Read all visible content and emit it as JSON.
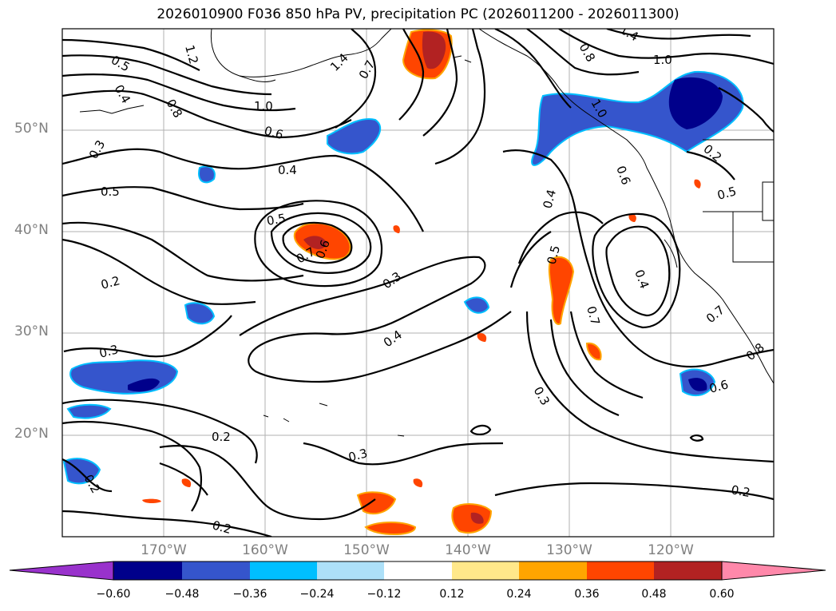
{
  "title": "2026010900 F036 850 hPa PV, precipitation PC (2026011200 - 2026011300)",
  "map": {
    "lat_labels": [
      "50°N",
      "40°N",
      "30°N",
      "20°N"
    ],
    "lon_labels": [
      "170°W",
      "160°W",
      "150°W",
      "140°W",
      "130°W",
      "120°W"
    ],
    "contour_labels": [
      "0.5",
      "0.4",
      "1.2",
      "0.8",
      "0.3",
      "0.5",
      "1.0",
      "0.6",
      "0.4",
      "1.4",
      "0.7",
      "0.8",
      "1.0",
      "0.5",
      "0.7",
      "0.6",
      "0.2",
      "0.3",
      "0.4",
      "0.3",
      "0.4",
      "0.5",
      "0.7",
      "0.4",
      "0.6",
      "0.5",
      "0.3",
      "0.2",
      "0.2",
      "0.3",
      "0.2",
      "0.2",
      "0.6",
      "0.7",
      "0.8",
      "0.2",
      "1.0",
      "1.4"
    ]
  },
  "colorbar": {
    "ticks": [
      "−0.60",
      "−0.48",
      "−0.36",
      "−0.24",
      "−0.12",
      "0.12",
      "0.24",
      "0.36",
      "0.48",
      "0.60"
    ],
    "colors": [
      "#9932cc",
      "#00008b",
      "#3555cc",
      "#00bfff",
      "#ade0f8",
      "#ffffff",
      "#ffe88a",
      "#ffa500",
      "#ff4500",
      "#b22222",
      "#ff88aa"
    ]
  }
}
